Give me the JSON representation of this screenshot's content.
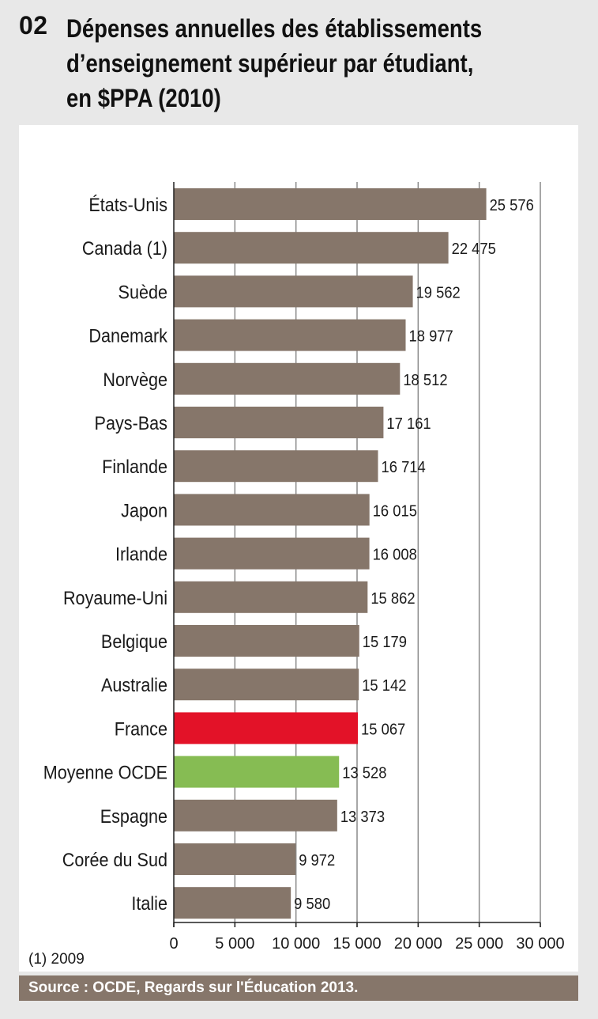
{
  "figure": {
    "number": "02",
    "title": "Dépenses annuelles des établissements\nd’enseignement supérieur par étudiant,\nen $PPA (2010)"
  },
  "colors": {
    "bar_default": "#86766a",
    "bar_france": "#e31228",
    "bar_oecd_average": "#86bc53",
    "grid": "#8a8a8a",
    "axis": "#222222"
  },
  "chart_data": {
    "type": "bar",
    "orientation": "horizontal",
    "categories": [
      "États-Unis",
      "Canada (1)",
      "Suède",
      "Danemark",
      "Norvège",
      "Pays-Bas",
      "Finlande",
      "Japon",
      "Irlande",
      "Royaume-Uni",
      "Belgique",
      "Australie",
      "France",
      "Moyenne OCDE",
      "Espagne",
      "Corée du Sud",
      "Italie"
    ],
    "values": [
      25576,
      22475,
      19562,
      18977,
      18512,
      17161,
      16714,
      16015,
      16008,
      15862,
      15179,
      15142,
      15067,
      13528,
      13373,
      9972,
      9580
    ],
    "value_labels": [
      "25 576",
      "22 475",
      "19 562",
      "18 977",
      "18 512",
      "17 161",
      "16 714",
      "16 015",
      "16 008",
      "15 862",
      "15 179",
      "15 142",
      "15 067",
      "13 528",
      "13 373",
      "9 972",
      "9 580"
    ],
    "highlight": {
      "France": "bar_france",
      "Moyenne OCDE": "bar_oecd_average"
    },
    "xlim": [
      0,
      30000
    ],
    "xticks": [
      0,
      5000,
      10000,
      15000,
      20000,
      25000,
      30000
    ],
    "xtick_labels": [
      "0",
      "5 000",
      "10 000",
      "15 000",
      "20 000",
      "25 000",
      "30 000"
    ],
    "grid": true,
    "legend": "none"
  },
  "footnote": "(1) 2009",
  "source": "Source :  OCDE, Regards sur l'Éducation 2013."
}
